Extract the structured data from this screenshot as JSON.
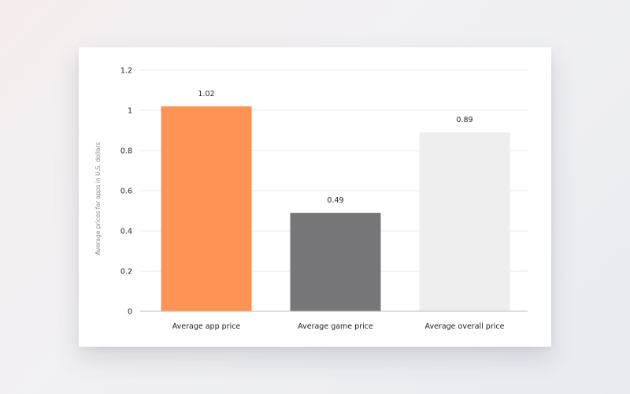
{
  "chart_data": {
    "type": "bar",
    "categories": [
      "Average app price",
      "Average game price",
      "Average overall price"
    ],
    "values": [
      1.02,
      0.49,
      0.89
    ],
    "value_labels": [
      "1.02",
      "0.49",
      "0.89"
    ],
    "title": "",
    "xlabel": "",
    "ylabel": "Average prices for apps in U.S. dollars",
    "ylim": [
      0,
      1.2
    ],
    "yticks": [
      0,
      0.2,
      0.4,
      0.6,
      0.8,
      1,
      1.2
    ],
    "ytick_labels": [
      "0",
      "0.2",
      "0.4",
      "0.6",
      "0.8",
      "1",
      "1.2"
    ],
    "grid": true,
    "legend": "none",
    "colors": [
      "#ff9354",
      "#77777a",
      "#eeeeee"
    ]
  }
}
